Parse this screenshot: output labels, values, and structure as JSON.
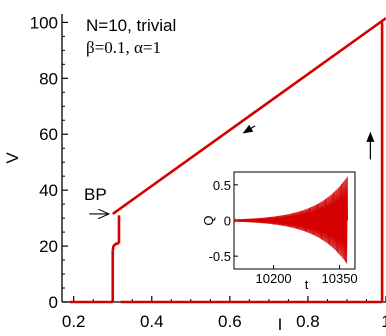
{
  "chart_data": {
    "type": "line",
    "title": "",
    "xlabel": "I",
    "ylabel": "V",
    "xlim": [
      0.17,
      1.0
    ],
    "ylim": [
      0,
      103
    ],
    "xticks": [
      0.2,
      0.4,
      0.6,
      0.8,
      1.0
    ],
    "xtick_labels": [
      "0.2",
      "0.4",
      "0.6",
      "0.8",
      "1"
    ],
    "yticks": [
      0,
      20,
      40,
      60,
      80,
      100
    ],
    "ytick_labels": [
      "0",
      "20",
      "40",
      "60",
      "80",
      "100"
    ],
    "grid": false,
    "legend": "none",
    "line_color": "#d40000",
    "annotations": {
      "line1": "N=10, trivial",
      "line2": "β=0.1, α=1",
      "bp_label": "BP"
    },
    "series": [
      {
        "segments": [
          [
            [
              0.3,
              31.5
            ],
            [
              1.0,
              101.5
            ]
          ],
          [
            [
              0.3,
              0.0
            ],
            [
              0.3,
              18.5
            ]
          ],
          [
            [
              0.3,
              18.5
            ],
            [
              0.302,
              20.0
            ],
            [
              0.308,
              20.8
            ],
            [
              0.316,
              21.0
            ]
          ],
          [
            [
              0.316,
              21.0
            ],
            [
              0.316,
              31.0
            ]
          ],
          [
            [
              0.19,
              0.0
            ],
            [
              0.3,
              0.0
            ]
          ],
          [
            [
              0.32,
              0.0
            ],
            [
              0.99,
              0.0
            ]
          ],
          [
            [
              0.99,
              0.0
            ],
            [
              0.99,
              100.0
            ]
          ]
        ]
      }
    ],
    "arrows": [
      {
        "from": [
          0.24,
          31.5
        ],
        "to": [
          0.29,
          31.5
        ]
      },
      {
        "from": [
          0.665,
          63.0
        ],
        "to": [
          0.635,
          60.5
        ]
      },
      {
        "from": [
          0.96,
          51.0
        ],
        "to": [
          0.96,
          60.5
        ]
      }
    ],
    "inset": {
      "type": "line",
      "xlabel": "t",
      "ylabel": "Q",
      "xlim": [
        10110,
        10385
      ],
      "ylim": [
        -0.68,
        0.68
      ],
      "xticks": [
        10200,
        10350
      ],
      "xtick_labels": [
        "10200",
        "10350"
      ],
      "yticks": [
        0.5,
        0,
        -0.5
      ],
      "ytick_labels": [
        "0.5",
        "0",
        "-0.5"
      ],
      "oscillation": {
        "t_start": 10110,
        "t_end": 10368,
        "amplitude_start": 0.015,
        "amplitude_end": 0.62,
        "period": 2.6
      }
    }
  }
}
